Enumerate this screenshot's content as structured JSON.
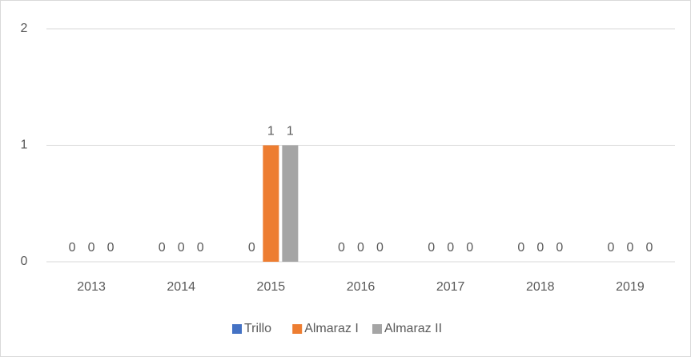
{
  "chart_data": {
    "type": "bar",
    "categories": [
      "2013",
      "2014",
      "2015",
      "2016",
      "2017",
      "2018",
      "2019"
    ],
    "series": [
      {
        "name": "Trillo",
        "color": "#4472c4",
        "values": [
          0,
          0,
          0,
          0,
          0,
          0,
          0
        ]
      },
      {
        "name": "Almaraz I",
        "color": "#ed7d31",
        "values": [
          0,
          0,
          1,
          0,
          0,
          0,
          0
        ]
      },
      {
        "name": "Almaraz II",
        "color": "#a5a5a5",
        "values": [
          0,
          0,
          1,
          0,
          0,
          0,
          0
        ]
      }
    ],
    "ylim": [
      0,
      2
    ],
    "yticks": [
      0,
      1,
      2
    ],
    "grid": true,
    "legend": "bottom",
    "data_labels": true
  }
}
